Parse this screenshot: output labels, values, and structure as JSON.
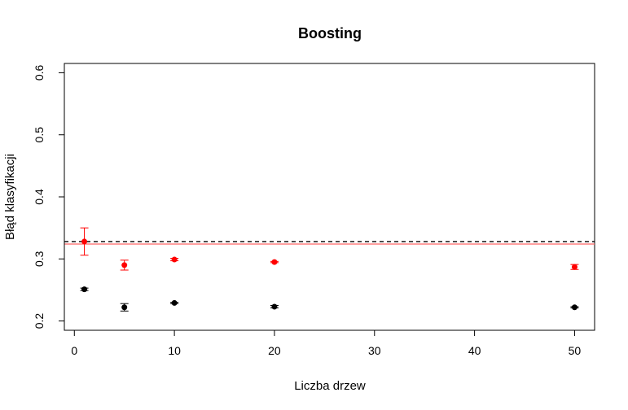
{
  "chart_data": {
    "type": "scatter",
    "title": "Boosting",
    "xlabel": "Liczba drzew",
    "ylabel": "Błąd klasyfikacji",
    "xlim": [
      -1,
      52
    ],
    "ylim": [
      0.185,
      0.615
    ],
    "xticks": [
      0,
      10,
      20,
      30,
      40,
      50
    ],
    "yticks": [
      0.2,
      0.3,
      0.4,
      0.5,
      0.6
    ],
    "grid": false,
    "series": [
      {
        "color": "#ff0000",
        "points": [
          {
            "x": 1,
            "y": 0.328,
            "lo": 0.306,
            "hi": 0.35
          },
          {
            "x": 5,
            "y": 0.29,
            "lo": 0.282,
            "hi": 0.298
          },
          {
            "x": 10,
            "y": 0.299,
            "lo": 0.297,
            "hi": 0.301
          },
          {
            "x": 20,
            "y": 0.295,
            "lo": 0.294,
            "hi": 0.296
          },
          {
            "x": 50,
            "y": 0.287,
            "lo": 0.283,
            "hi": 0.291
          }
        ]
      },
      {
        "color": "#000000",
        "points": [
          {
            "x": 1,
            "y": 0.251,
            "lo": 0.249,
            "hi": 0.253
          },
          {
            "x": 5,
            "y": 0.222,
            "lo": 0.216,
            "hi": 0.228
          },
          {
            "x": 10,
            "y": 0.229,
            "lo": 0.228,
            "hi": 0.23
          },
          {
            "x": 20,
            "y": 0.223,
            "lo": 0.221,
            "hi": 0.225
          },
          {
            "x": 50,
            "y": 0.222,
            "lo": 0.221,
            "hi": 0.223
          }
        ]
      }
    ],
    "reference_lines": [
      {
        "y": 0.328,
        "color": "#000000",
        "style": "dashed"
      },
      {
        "y": 0.324,
        "color": "#ff6666",
        "style": "solid"
      }
    ]
  }
}
